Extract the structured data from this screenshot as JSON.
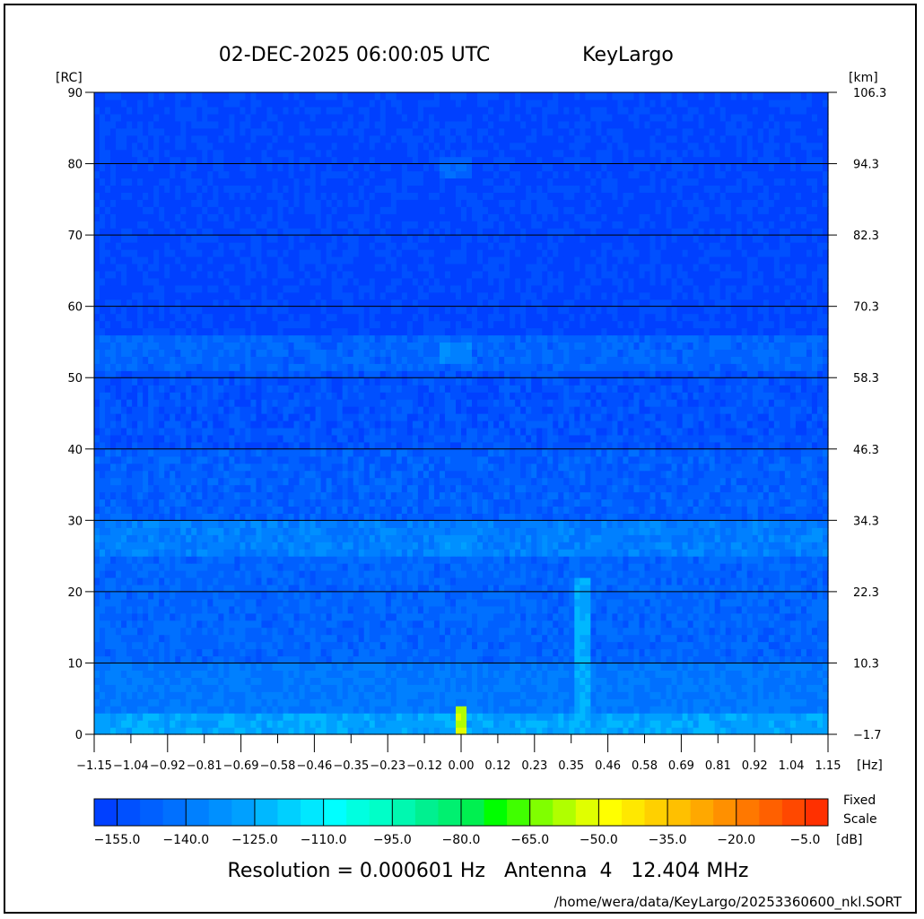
{
  "header": {
    "timestamp": "02-DEC-2025 06:00:05 UTC",
    "station": "KeyLargo"
  },
  "chart_data": {
    "type": "heatmap",
    "xlabel": "[Hz]",
    "ylabel_left": "[RC]",
    "ylabel_right": "[km]",
    "xlim": [
      -1.15,
      1.15
    ],
    "ylim": [
      0,
      90
    ],
    "x_ticks": [
      "-1.15",
      "-1.04",
      "-0.92",
      "-0.81",
      "-0.69",
      "-0.58",
      "-0.46",
      "-0.35",
      "-0.23",
      "-0.12",
      "0.00",
      "0.12",
      "0.23",
      "0.35",
      "0.46",
      "0.58",
      "0.69",
      "0.81",
      "0.92",
      "1.04",
      "1.15"
    ],
    "y_ticks_left": [
      "0",
      "10",
      "20",
      "30",
      "40",
      "50",
      "60",
      "70",
      "80",
      "90"
    ],
    "y_ticks_right": [
      "-1.7",
      "10.3",
      "22.3",
      "34.3",
      "46.3",
      "58.3",
      "70.3",
      "82.3",
      "94.3",
      "106.3"
    ],
    "grid": "horizontal",
    "background_levels_db": [
      {
        "rc": [
          0,
          3
        ],
        "db": -127
      },
      {
        "rc": [
          3,
          10
        ],
        "db": -140
      },
      {
        "rc": [
          10,
          25
        ],
        "db": -146
      },
      {
        "rc": [
          25,
          30
        ],
        "db": -138
      },
      {
        "rc": [
          30,
          40
        ],
        "db": -148
      },
      {
        "rc": [
          40,
          51
        ],
        "db": -152
      },
      {
        "rc": [
          51,
          56
        ],
        "db": -146
      },
      {
        "rc": [
          56,
          90
        ],
        "db": -156
      }
    ],
    "features": [
      {
        "hz": [
          -0.05,
          0.02
        ],
        "rc": [
          52,
          55
        ],
        "db": -135
      },
      {
        "hz": [
          -0.05,
          0.02
        ],
        "rc": [
          25,
          28
        ],
        "db": -132
      },
      {
        "hz": [
          -0.05,
          0.03
        ],
        "rc": [
          78,
          81
        ],
        "db": -145
      },
      {
        "hz": [
          0.0,
          0.0
        ],
        "rc": [
          0,
          4
        ],
        "db": -55
      },
      {
        "hz": [
          0.36,
          0.39
        ],
        "rc": [
          0,
          22
        ],
        "db": -125
      }
    ],
    "colorbar": {
      "min": -160,
      "max": 0,
      "step": 5,
      "tick_labels": [
        "-155.0",
        "-140.0",
        "-125.0",
        "-110.0",
        "-95.0",
        "-80.0",
        "-65.0",
        "-50.0",
        "-35.0",
        "-20.0",
        "-5.0"
      ],
      "unit": "[dB]",
      "note_line1": "Fixed",
      "note_line2": "Scale",
      "colors": [
        "#0040ff",
        "#0050ff",
        "#0060ff",
        "#0070ff",
        "#0080ff",
        "#0090ff",
        "#00a0ff",
        "#00b8ff",
        "#00d0ff",
        "#00e8ff",
        "#00ffff",
        "#00ffe0",
        "#00ffc8",
        "#00f8b0",
        "#00f090",
        "#00f070",
        "#00f050",
        "#00ff00",
        "#40ff00",
        "#80ff00",
        "#b0ff00",
        "#e0ff00",
        "#ffff00",
        "#ffe800",
        "#ffd000",
        "#ffc000",
        "#ffa800",
        "#ff9000",
        "#ff7800",
        "#ff6000",
        "#ff4800",
        "#ff3000"
      ]
    }
  },
  "footer": {
    "info": "Resolution = 0.000601 Hz   Antenna  4   12.404 MHz",
    "file_path": "/home/wera/data/KeyLargo/20253360600_nkl.SORT"
  }
}
